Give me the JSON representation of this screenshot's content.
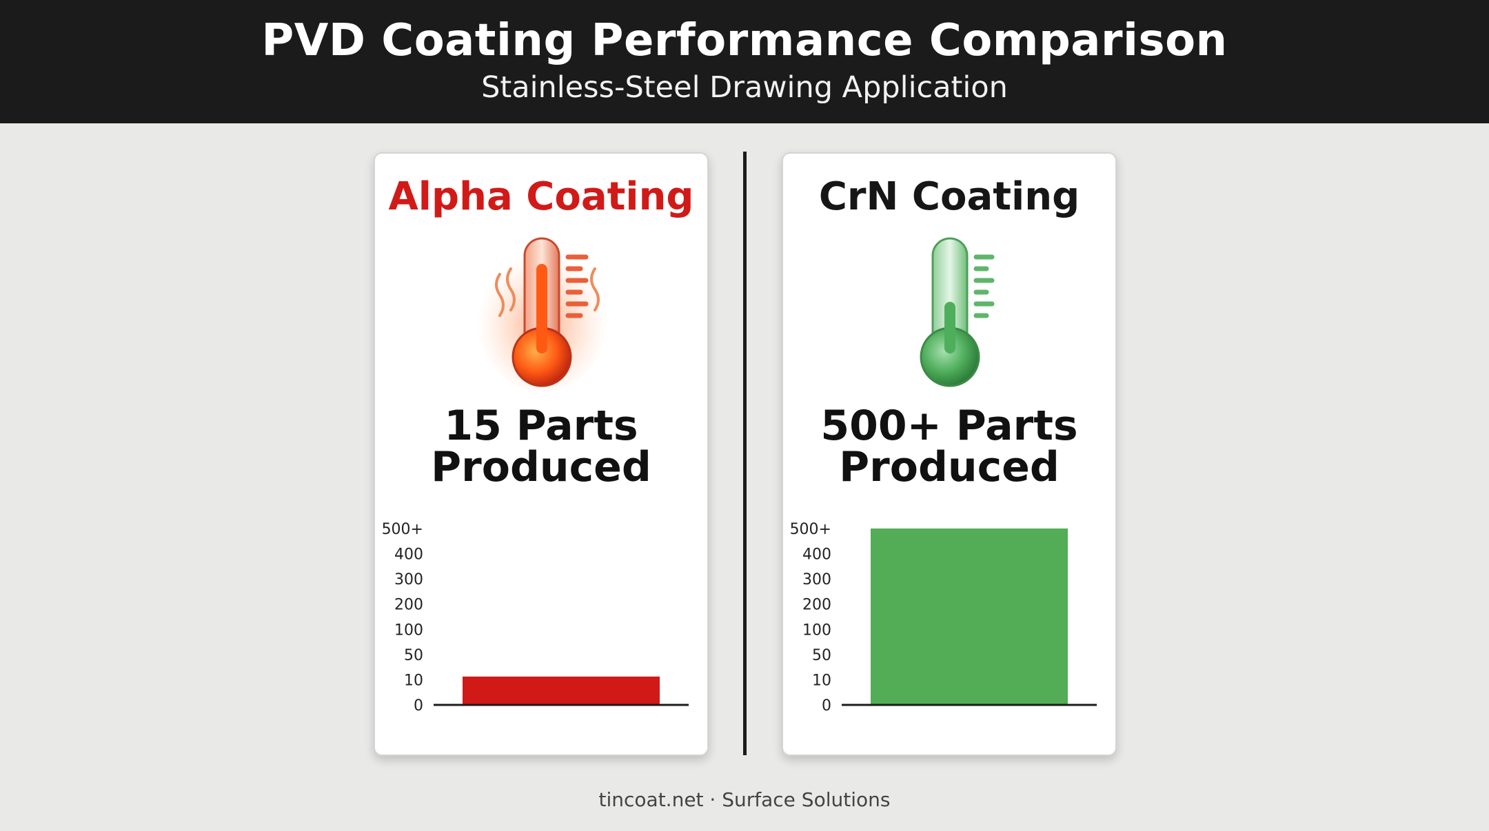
{
  "header": {
    "title": "PVD Coating Performance Comparison",
    "subtitle": "Stainless-Steel Drawing Application"
  },
  "colors": {
    "header_bg": "#1b1b1b",
    "alpha_accent": "#d11a17",
    "crn_accent": "#52ad56",
    "background": "#e9e9e8"
  },
  "chart_data": [
    {
      "type": "bar",
      "title": "Alpha Coating",
      "headline_line1": "15 Parts",
      "headline_line2": "Produced",
      "icon": "hot-thermometer-icon",
      "y_ticks": [
        "0",
        "10",
        "50",
        "100",
        "200",
        "300",
        "400",
        "500+"
      ],
      "categories": [
        ""
      ],
      "values": [
        15
      ],
      "bar_color": "#d11a17",
      "grid": false
    },
    {
      "type": "bar",
      "title": "CrN Coating",
      "headline_line1": "500+ Parts",
      "headline_line2": "Produced",
      "icon": "cool-thermometer-icon",
      "y_ticks": [
        "0",
        "10",
        "50",
        "100",
        "200",
        "300",
        "400",
        "500+"
      ],
      "categories": [
        ""
      ],
      "values": [
        500
      ],
      "bar_color": "#52ad56",
      "grid": false
    }
  ],
  "footer": {
    "text": "tincoat.net · Surface Solutions"
  }
}
